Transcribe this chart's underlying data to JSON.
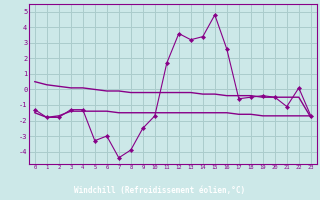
{
  "xlabel": "Windchill (Refroidissement éolien,°C)",
  "background_color": "#cce8e8",
  "grid_color": "#aacccc",
  "line_color": "#880088",
  "border_color": "#880088",
  "label_bg_color": "#8844aa",
  "x_ticks": [
    0,
    1,
    2,
    3,
    4,
    5,
    6,
    7,
    8,
    9,
    10,
    11,
    12,
    13,
    14,
    15,
    16,
    17,
    18,
    19,
    20,
    21,
    22,
    23
  ],
  "y_ticks": [
    -4,
    -3,
    -2,
    -1,
    0,
    1,
    2,
    3,
    4,
    5
  ],
  "ylim": [
    -4.8,
    5.5
  ],
  "xlim": [
    -0.5,
    23.5
  ],
  "line1_x": [
    0,
    1,
    2,
    3,
    4,
    5,
    6,
    7,
    8,
    9,
    10,
    11,
    12,
    13,
    14,
    15,
    16,
    17,
    18,
    19,
    20,
    21,
    22,
    23
  ],
  "line1_y": [
    -1.3,
    -1.8,
    -1.8,
    -1.3,
    -1.3,
    -3.3,
    -3.0,
    -4.4,
    -3.9,
    -2.5,
    -1.7,
    1.7,
    3.6,
    3.2,
    3.4,
    4.8,
    2.6,
    -0.6,
    -0.5,
    -0.4,
    -0.5,
    -1.1,
    0.1,
    -1.7
  ],
  "line2_x": [
    0,
    1,
    2,
    3,
    4,
    5,
    6,
    7,
    8,
    9,
    10,
    11,
    12,
    13,
    14,
    15,
    16,
    17,
    18,
    19,
    20,
    21,
    22,
    23
  ],
  "line2_y": [
    0.5,
    0.3,
    0.2,
    0.1,
    0.1,
    0.0,
    -0.1,
    -0.1,
    -0.2,
    -0.2,
    -0.2,
    -0.2,
    -0.2,
    -0.2,
    -0.3,
    -0.3,
    -0.4,
    -0.4,
    -0.4,
    -0.5,
    -0.5,
    -0.5,
    -0.5,
    -1.8
  ],
  "line3_x": [
    0,
    1,
    2,
    3,
    4,
    5,
    6,
    7,
    8,
    9,
    10,
    11,
    12,
    13,
    14,
    15,
    16,
    17,
    18,
    19,
    20,
    21,
    22,
    23
  ],
  "line3_y": [
    -1.5,
    -1.8,
    -1.7,
    -1.4,
    -1.4,
    -1.4,
    -1.4,
    -1.5,
    -1.5,
    -1.5,
    -1.5,
    -1.5,
    -1.5,
    -1.5,
    -1.5,
    -1.5,
    -1.5,
    -1.6,
    -1.6,
    -1.7,
    -1.7,
    -1.7,
    -1.7,
    -1.7
  ]
}
